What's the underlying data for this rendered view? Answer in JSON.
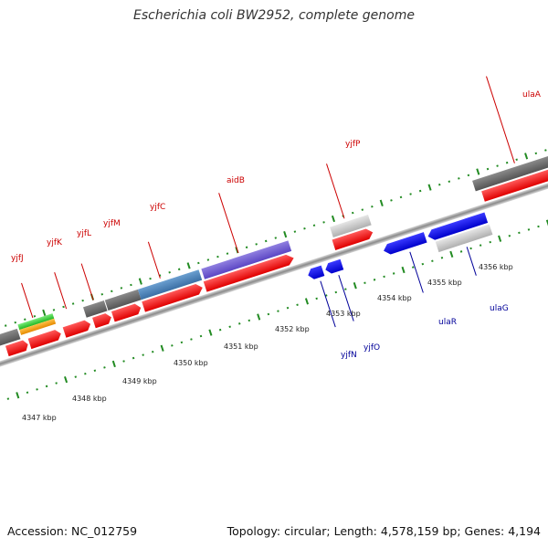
{
  "title": "Escherichia coli BW2952, complete genome",
  "footer": {
    "accession": "Accession: NC_012759",
    "stats": "Topology: circular; Length: 4,578,159 bp; Genes: 4,194"
  },
  "colors": {
    "backbone": "#999999",
    "tick": "#228b22",
    "forward_label": "#cc0000",
    "reverse_label": "#000099"
  },
  "kbp_labels": [
    "4347 kbp",
    "4348 kbp",
    "4349 kbp",
    "4350 kbp",
    "4351 kbp",
    "4352 kbp",
    "4353 kbp",
    "4354 kbp",
    "4355 kbp",
    "4356 kbp"
  ],
  "forward_gene_labels": [
    "yjfJ",
    "yjfK",
    "yjfL",
    "yjfM",
    "yjfC",
    "aidB",
    "yjfP",
    "ulaA"
  ],
  "reverse_gene_labels": [
    "yjfN",
    "yjfO",
    "ulaR",
    "ulaG"
  ]
}
